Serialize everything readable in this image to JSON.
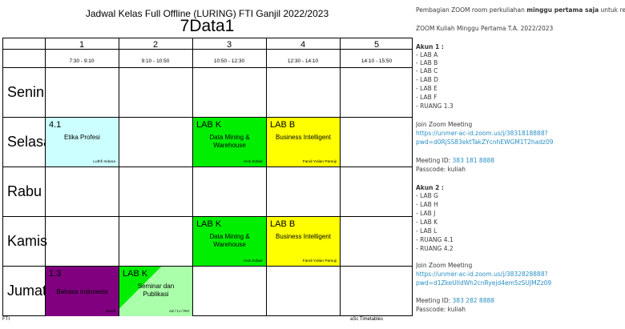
{
  "timetable": {
    "title": "Jadwal Kelas Full Offline (LURING) FTI Ganjil 2022/2023",
    "class_name": "7Data1",
    "periods": [
      {
        "num": "1",
        "time": "7:30 - 9:10"
      },
      {
        "num": "2",
        "time": "9:10 - 10:50"
      },
      {
        "num": "3",
        "time": "10:50 - 12:30"
      },
      {
        "num": "4",
        "time": "12:30 - 14:10"
      },
      {
        "num": "5",
        "time": "14:10 - 15:50"
      }
    ],
    "days": [
      "Senin",
      "Selasa",
      "Rabu",
      "Kamis",
      "Jumat"
    ],
    "lessons": [
      {
        "room": "4.1",
        "subject": "Etika Profesi",
        "teacher": "Luthfi Indana",
        "color": "#ccffff"
      },
      {
        "room": "LAB K",
        "subject": "Data Mining & Warehouse",
        "teacher": "Anis Zubair",
        "color": "#00ee00"
      },
      {
        "room": "LAB B",
        "subject": "Business Intelligent",
        "teacher": "Fandi Yulian Pamuji",
        "color": "#ffff00"
      },
      {
        "room": "LAB K",
        "subject": "Data Mining & Warehouse",
        "teacher": "Anis Zubair",
        "color": "#00ee00"
      },
      {
        "room": "LAB B",
        "subject": "Business Intelligent",
        "teacher": "Fandi Yulian Pamuji",
        "color": "#ffff00"
      },
      {
        "room": "1.3",
        "subject": "Bahasa Indonesia",
        "teacher": "Nanik",
        "color": "#800080"
      },
      {
        "room": "LAB K",
        "subject": "Seminar dan Publikasi",
        "teacher": "AZ / LI / RH",
        "color": "#00ee00",
        "color2": "#aaffaa"
      }
    ],
    "footer_left": "FTI",
    "footer_right": "aSc Timetables"
  },
  "zoom_info": {
    "intro_prefix": "Pembagian ZOOM room perkuliahan ",
    "intro_bold": "minggu pertama saja",
    "intro_suffix": " untuk reg",
    "heading": "ZOOM Kuliah Minggu Pertama T.A. 2022/2023",
    "accounts": [
      {
        "label": "Akun 1 :",
        "rooms": [
          "- LAB A",
          "- LAB B",
          "- LAB C",
          "- LAB D",
          "- LAB E",
          "- LAB F",
          "- RUANG 1.3"
        ],
        "join_label": "Join Zoom Meeting",
        "link_line1": "https://unmer-ac-id.zoom.us/j/38318188​88?",
        "link_line2": "pwd=d0RjSS83ektTakZYcnhEWGM1T2hadz09",
        "meeting_id_label": "Meeting ID: ",
        "meeting_id": "383 181 8888",
        "passcode": "Passcode: kuliah"
      },
      {
        "label": "Akun 2 :",
        "rooms": [
          "- LAB G",
          "- LAB H",
          "- LAB J",
          "- LAB K",
          "- LAB L",
          "- RUANG 4.1",
          "- RUANG 4.2"
        ],
        "join_label": "Join Zoom Meeting",
        "link_line1": "https://unmer-ac-id.zoom.us/j/3832828888?",
        "link_line2": "pwd=d1ZkeUlldWh2cnRyejd4em5zSUJMZz09",
        "meeting_id_label": "Meeting ID: ",
        "meeting_id": "383 282 8888",
        "passcode": "Passcode: kuliah"
      }
    ]
  }
}
